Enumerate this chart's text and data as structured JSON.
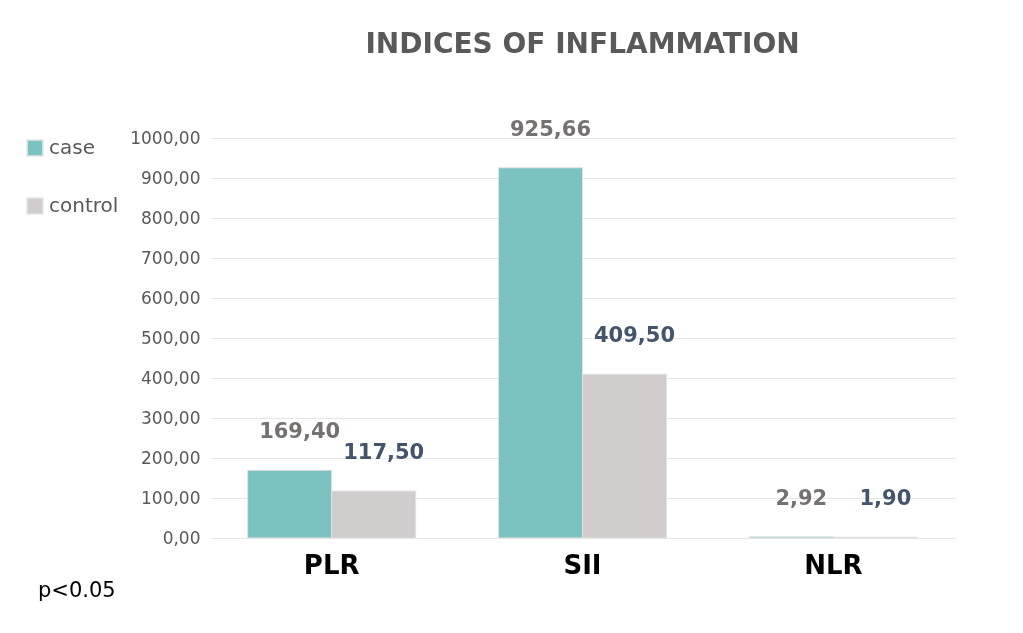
{
  "chart_data": {
    "type": "bar",
    "title": "INDICES OF INFLAMMATION",
    "categories": [
      "PLR",
      "SII",
      "NLR"
    ],
    "series": [
      {
        "name": "case",
        "color": "#7ac3c0",
        "values": [
          169.4,
          925.66,
          2.92
        ],
        "value_labels": [
          "169,40",
          "925,66",
          "2,92"
        ]
      },
      {
        "name": "control",
        "color": "#d0cdcc",
        "values": [
          117.5,
          409.5,
          1.9
        ],
        "value_labels": [
          "117,50",
          "409,50",
          "1,90"
        ]
      }
    ],
    "ylim": [
      0,
      1000
    ],
    "yticks": [
      {
        "value": 0,
        "label": "0,00"
      },
      {
        "value": 100,
        "label": "100,00"
      },
      {
        "value": 200,
        "label": "200,00"
      },
      {
        "value": 300,
        "label": "300,00"
      },
      {
        "value": 400,
        "label": "400,00"
      },
      {
        "value": 500,
        "label": "500,00"
      },
      {
        "value": 600,
        "label": "600,00"
      },
      {
        "value": 700,
        "label": "700,00"
      },
      {
        "value": 800,
        "label": "800,00"
      },
      {
        "value": 900,
        "label": "900,00"
      },
      {
        "value": 1000,
        "label": "1000,00"
      }
    ],
    "grid": "y",
    "legend": "left",
    "annotations": [
      "p<0.05"
    ]
  }
}
